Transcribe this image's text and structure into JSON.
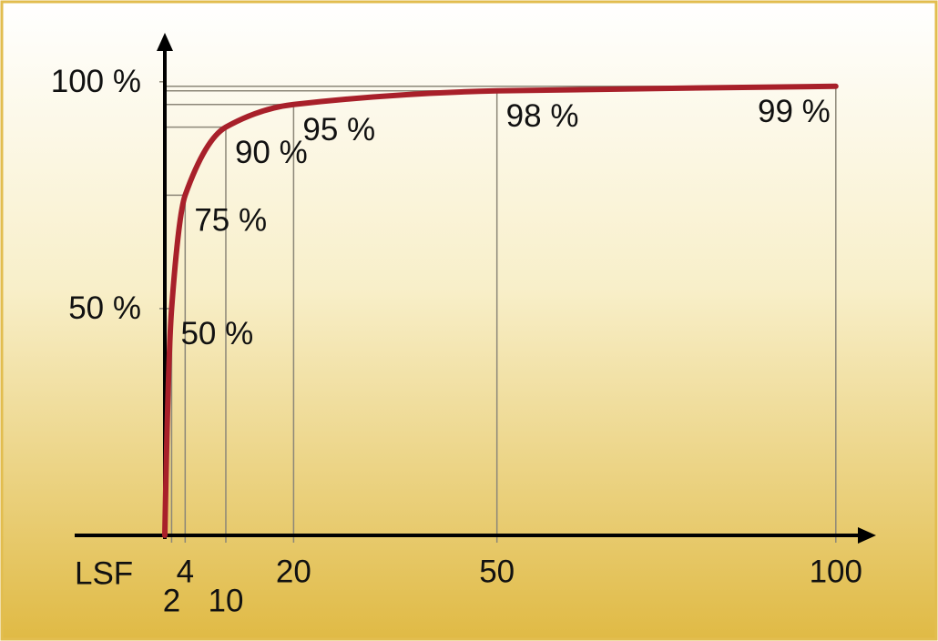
{
  "chart_data": {
    "type": "line",
    "x_label": "LSF",
    "x": [
      1,
      2,
      4,
      10,
      20,
      50,
      100
    ],
    "series": [
      {
        "color": "#a8202a",
        "values": [
          0,
          50,
          75,
          90,
          95,
          98,
          99
        ],
        "value_labels": [
          null,
          "50 %",
          "75 %",
          "90 %",
          "95 %",
          "98 %",
          "99 %"
        ]
      }
    ],
    "xlim": [
      1,
      105
    ],
    "ylim": [
      0,
      110
    ],
    "xticks": [
      2,
      4,
      10,
      20,
      50,
      100
    ],
    "yticks": [
      {
        "value": 50,
        "label": "50 %"
      },
      {
        "value": 100,
        "label": "100 %"
      }
    ]
  }
}
